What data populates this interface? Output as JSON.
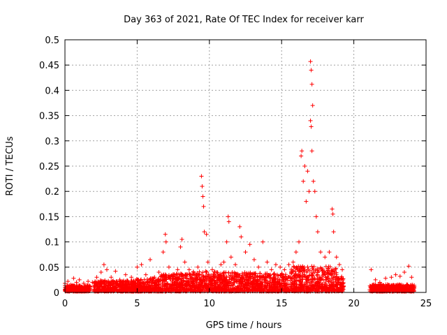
{
  "chart_data": {
    "type": "scatter",
    "title": "Day 363 of 2021, Rate Of TEC Index for receiver karr",
    "xlabel": "GPS time / hours",
    "ylabel": "ROTI / TECUs",
    "xlim": [
      0,
      25
    ],
    "ylim": [
      0,
      0.5
    ],
    "xticks": [
      0,
      5,
      10,
      15,
      20,
      25
    ],
    "yticks": [
      0,
      0.05,
      0.1,
      0.15,
      0.2,
      0.25,
      0.3,
      0.35,
      0.4,
      0.45,
      0.5
    ],
    "xtick_labels": [
      "0",
      "5",
      "10",
      "15",
      "20",
      "25"
    ],
    "ytick_labels": [
      "0",
      "0.05",
      "0.1",
      "0.15",
      "0.2",
      "0.25",
      "0.3",
      "0.35",
      "0.4",
      "0.45",
      "0.5"
    ],
    "grid": true,
    "marker": "+",
    "color": "#ff0000",
    "series": [
      {
        "points": [
          [
            0.0,
            0.018
          ],
          [
            0.2,
            0.022
          ],
          [
            0.4,
            0.015
          ],
          [
            0.6,
            0.028
          ],
          [
            0.8,
            0.02
          ],
          [
            1.0,
            0.025
          ],
          [
            1.3,
            0.018
          ],
          [
            1.6,
            0.022
          ],
          [
            1.9,
            0.02
          ],
          [
            2.2,
            0.03
          ],
          [
            2.5,
            0.04
          ],
          [
            2.7,
            0.055
          ],
          [
            2.9,
            0.045
          ],
          [
            3.2,
            0.03
          ],
          [
            3.5,
            0.042
          ],
          [
            3.8,
            0.025
          ],
          [
            4.2,
            0.035
          ],
          [
            4.6,
            0.03
          ],
          [
            5.0,
            0.05
          ],
          [
            5.3,
            0.055
          ],
          [
            5.6,
            0.035
          ],
          [
            5.9,
            0.065
          ],
          [
            6.2,
            0.03
          ],
          [
            6.5,
            0.04
          ],
          [
            6.8,
            0.08
          ],
          [
            6.95,
            0.115
          ],
          [
            7.0,
            0.1
          ],
          [
            7.2,
            0.05
          ],
          [
            7.5,
            0.035
          ],
          [
            7.8,
            0.045
          ],
          [
            8.0,
            0.09
          ],
          [
            8.1,
            0.105
          ],
          [
            8.3,
            0.06
          ],
          [
            8.6,
            0.045
          ],
          [
            8.9,
            0.04
          ],
          [
            9.2,
            0.05
          ],
          [
            9.45,
            0.23
          ],
          [
            9.5,
            0.21
          ],
          [
            9.55,
            0.19
          ],
          [
            9.6,
            0.17
          ],
          [
            9.65,
            0.12
          ],
          [
            9.8,
            0.115
          ],
          [
            9.9,
            0.06
          ],
          [
            10.2,
            0.045
          ],
          [
            10.5,
            0.04
          ],
          [
            10.8,
            0.055
          ],
          [
            11.0,
            0.06
          ],
          [
            11.2,
            0.1
          ],
          [
            11.3,
            0.15
          ],
          [
            11.35,
            0.14
          ],
          [
            11.5,
            0.07
          ],
          [
            11.8,
            0.055
          ],
          [
            12.1,
            0.13
          ],
          [
            12.2,
            0.11
          ],
          [
            12.5,
            0.08
          ],
          [
            12.8,
            0.095
          ],
          [
            13.1,
            0.065
          ],
          [
            13.4,
            0.05
          ],
          [
            13.7,
            0.1
          ],
          [
            14.0,
            0.06
          ],
          [
            14.3,
            0.045
          ],
          [
            14.6,
            0.055
          ],
          [
            14.9,
            0.05
          ],
          [
            15.2,
            0.045
          ],
          [
            15.5,
            0.055
          ],
          [
            15.8,
            0.06
          ],
          [
            16.0,
            0.08
          ],
          [
            16.2,
            0.1
          ],
          [
            16.35,
            0.27
          ],
          [
            16.4,
            0.28
          ],
          [
            16.5,
            0.22
          ],
          [
            16.6,
            0.25
          ],
          [
            16.7,
            0.18
          ],
          [
            16.8,
            0.24
          ],
          [
            16.9,
            0.2
          ],
          [
            17.0,
            0.457
          ],
          [
            17.05,
            0.44
          ],
          [
            17.1,
            0.412
          ],
          [
            17.15,
            0.37
          ],
          [
            17.0,
            0.34
          ],
          [
            17.05,
            0.328
          ],
          [
            17.1,
            0.28
          ],
          [
            17.2,
            0.22
          ],
          [
            17.3,
            0.2
          ],
          [
            17.4,
            0.15
          ],
          [
            17.5,
            0.12
          ],
          [
            17.7,
            0.08
          ],
          [
            18.0,
            0.07
          ],
          [
            18.3,
            0.08
          ],
          [
            18.5,
            0.165
          ],
          [
            18.55,
            0.155
          ],
          [
            18.6,
            0.12
          ],
          [
            18.8,
            0.07
          ],
          [
            19.0,
            0.055
          ],
          [
            19.2,
            0.045
          ],
          [
            21.2,
            0.045
          ],
          [
            21.5,
            0.025
          ],
          [
            21.8,
            0.02
          ],
          [
            22.2,
            0.028
          ],
          [
            22.6,
            0.03
          ],
          [
            22.9,
            0.035
          ],
          [
            23.2,
            0.032
          ],
          [
            23.5,
            0.04
          ],
          [
            23.8,
            0.052
          ],
          [
            24.0,
            0.03
          ]
        ]
      }
    ],
    "density_bands": [
      [
        0.0,
        1.8,
        0.012
      ],
      [
        2.0,
        4.8,
        0.022
      ],
      [
        4.8,
        6.6,
        0.026
      ],
      [
        6.6,
        8.8,
        0.035
      ],
      [
        8.8,
        10.6,
        0.04
      ],
      [
        10.6,
        13.0,
        0.038
      ],
      [
        13.0,
        15.6,
        0.036
      ],
      [
        15.6,
        18.8,
        0.05
      ],
      [
        18.8,
        19.3,
        0.03
      ],
      [
        21.1,
        24.2,
        0.014
      ]
    ]
  }
}
